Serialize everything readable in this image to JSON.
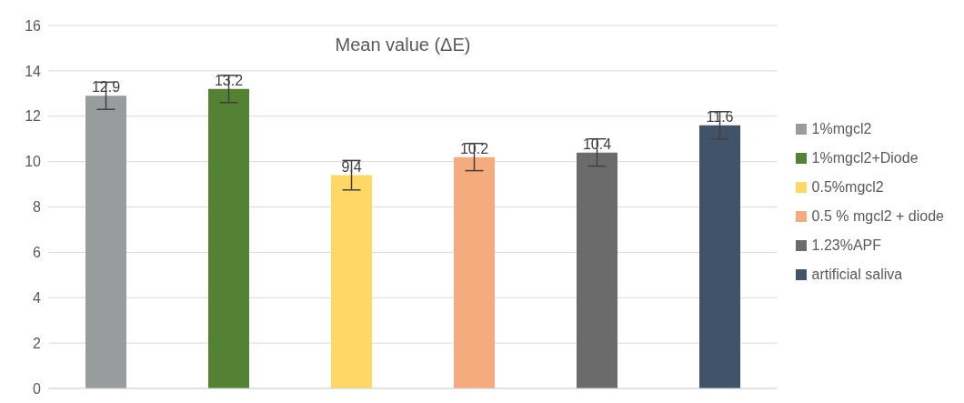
{
  "chart_data": {
    "type": "bar",
    "title": "Mean value (ΔE)",
    "categories": [
      null
    ],
    "series": [
      {
        "name": "1%mgcl2",
        "color": "#989c9c",
        "values": [
          12.9
        ],
        "errors": [
          0.6
        ]
      },
      {
        "name": "1%mgcl2+Diode",
        "color": "#548235",
        "values": [
          13.2
        ],
        "errors": [
          0.6
        ]
      },
      {
        "name": "0.5%mgcl2",
        "color": "#ffd766",
        "values": [
          9.4
        ],
        "errors": [
          0.65
        ]
      },
      {
        "name": "0.5 % mgcl2 + diode",
        "color": "#f4ab7e",
        "values": [
          10.2
        ],
        "errors": [
          0.6
        ]
      },
      {
        "name": "1.23%APF",
        "color": "#6b6b6b",
        "values": [
          10.4
        ],
        "errors": [
          0.6
        ]
      },
      {
        "name": "artificial saliva",
        "color": "#415368",
        "values": [
          11.6
        ],
        "errors": [
          0.6
        ]
      }
    ],
    "ylim": [
      0,
      16
    ],
    "yticks": [
      0,
      2,
      4,
      6,
      8,
      10,
      12,
      14,
      16
    ],
    "grid": "y",
    "legend": "right",
    "data_labels": true
  }
}
